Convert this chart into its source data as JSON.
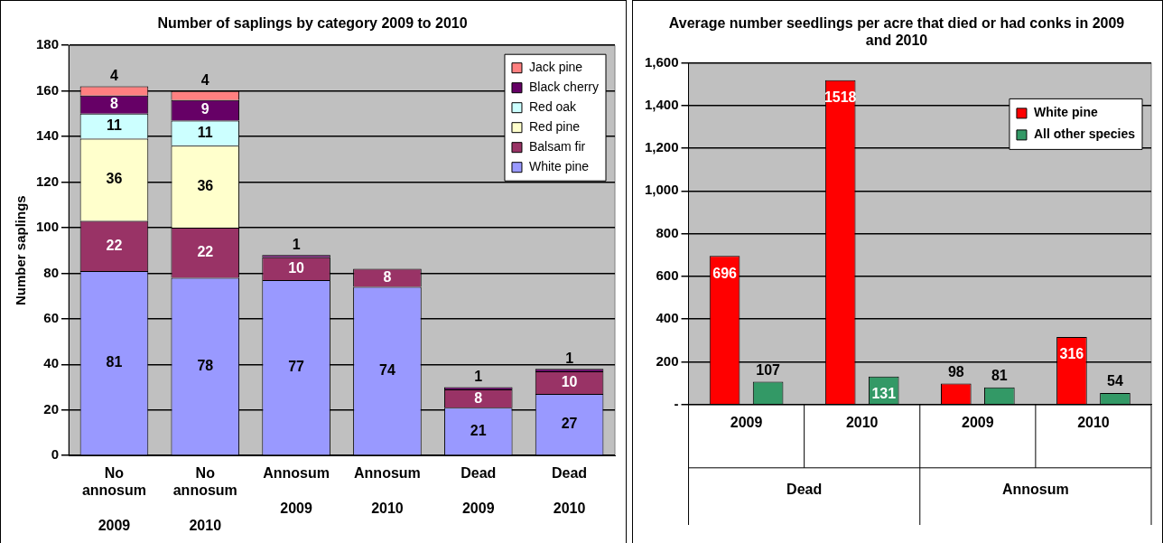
{
  "chart_data": [
    {
      "type": "bar",
      "title": "Number of saplings by category 2009 to 2010",
      "ylabel": "Number saplings",
      "categories": [
        "No annosum 2009",
        "No annosum 2010",
        "Annosum 2009",
        "Annosum 2010",
        "Dead 2009",
        "Dead 2010"
      ],
      "stacked": true,
      "series": [
        {
          "name": "White pine",
          "color": "#9999ff",
          "values": [
            81,
            78,
            77,
            74,
            21,
            27
          ]
        },
        {
          "name": "Balsam fir",
          "color": "#993366",
          "values": [
            22,
            22,
            10,
            8,
            8,
            10
          ]
        },
        {
          "name": "Red pine",
          "color": "#ffffcc",
          "values": [
            36,
            36,
            null,
            null,
            null,
            null
          ]
        },
        {
          "name": "Red oak",
          "color": "#ccffff",
          "values": [
            11,
            11,
            null,
            null,
            null,
            null
          ]
        },
        {
          "name": "Black cherry",
          "color": "#660066",
          "values": [
            8,
            9,
            1,
            null,
            1,
            1
          ]
        },
        {
          "name": "Jack pine",
          "color": "#ff8080",
          "values": [
            4,
            4,
            null,
            null,
            null,
            null
          ]
        }
      ],
      "ylim": [
        0,
        180
      ],
      "yticks": [
        0,
        20,
        40,
        60,
        80,
        100,
        120,
        140,
        160,
        180
      ],
      "grid": "y",
      "legend": "top right",
      "data_labels": true
    },
    {
      "type": "bar",
      "title": "Average number seedlings per acre that died or had conks in 2009 and 2010",
      "categories": [
        "2009",
        "2010",
        "2009",
        "2010"
      ],
      "series": [
        {
          "name": "White pine",
          "color": "#ff0000",
          "values": [
            696,
            1518,
            98,
            316
          ]
        },
        {
          "name": "All other species",
          "color": "#339966",
          "values": [
            107,
            131,
            81,
            54
          ]
        }
      ],
      "ylim": [
        0,
        1600
      ],
      "yticks": [
        {
          "value": 0,
          "label": "-"
        },
        200,
        400,
        600,
        800,
        {
          "value": 1000,
          "label": "1,000"
        },
        {
          "value": 1200,
          "label": "1,200"
        },
        {
          "value": 1400,
          "label": "1,400"
        },
        {
          "value": 1600,
          "label": "1,600"
        }
      ],
      "grid": "y",
      "legend": "top right",
      "data_labels": true,
      "annotations": [
        "Dead",
        "Annosum"
      ]
    }
  ]
}
